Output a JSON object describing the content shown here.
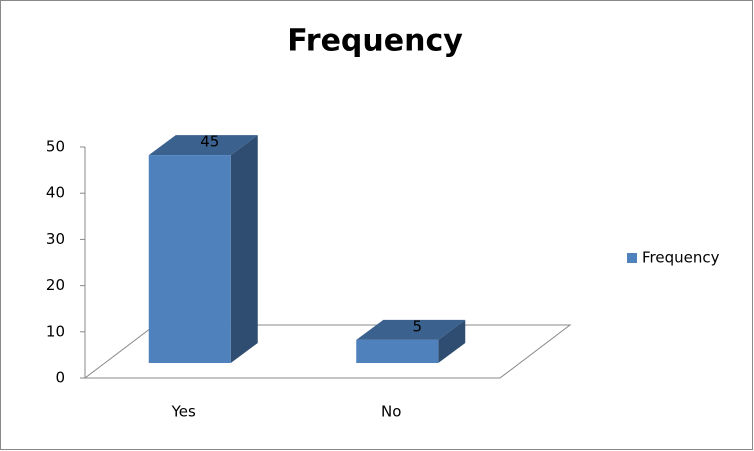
{
  "chart_data": {
    "type": "bar",
    "title": "Frequency",
    "categories": [
      "Yes",
      "No"
    ],
    "series": [
      {
        "name": "Frequency",
        "color": "#4f81bd",
        "values": [
          45,
          5
        ]
      }
    ],
    "ylim": [
      0,
      50
    ],
    "yticks": [
      0,
      10,
      20,
      30,
      40,
      50
    ],
    "grid": false,
    "legend": "right"
  }
}
